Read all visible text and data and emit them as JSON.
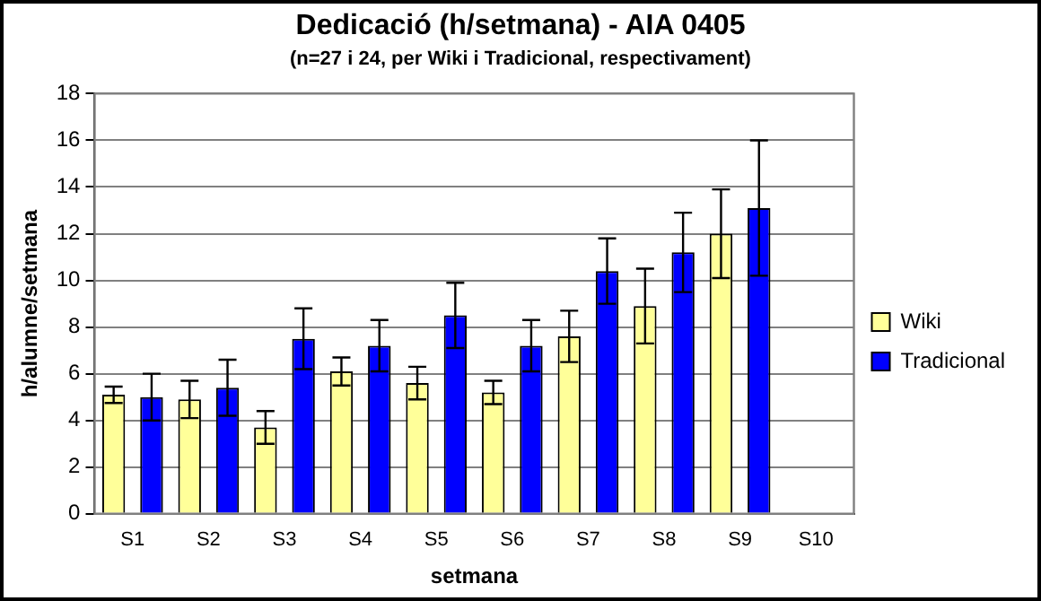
{
  "chart_data": {
    "type": "bar",
    "title": "Dedicació (h/setmana)  - AIA 0405",
    "subtitle": "(n=27 i 24, per Wiki i Tradicional, respectivament)",
    "xlabel": "setmana",
    "ylabel": "h/alumne/setmana",
    "categories": [
      "S1",
      "S2",
      "S3",
      "S4",
      "S5",
      "S6",
      "S7",
      "S8",
      "S9",
      "S10"
    ],
    "series": [
      {
        "name": "Wiki",
        "color": "#ffff99",
        "values": [
          5.1,
          4.9,
          3.7,
          6.1,
          5.6,
          5.2,
          7.6,
          8.9,
          12.0,
          null
        ],
        "errors": [
          0.35,
          0.8,
          0.7,
          0.6,
          0.7,
          0.5,
          1.1,
          1.6,
          1.9,
          null
        ]
      },
      {
        "name": "Tradicional",
        "color": "#0000ff",
        "values": [
          5.0,
          5.4,
          7.5,
          7.2,
          8.5,
          7.2,
          10.4,
          11.2,
          13.1,
          null
        ],
        "errors": [
          1.0,
          1.2,
          1.3,
          1.1,
          1.4,
          1.1,
          1.4,
          1.7,
          2.9,
          null
        ]
      }
    ],
    "ylim": [
      0,
      18
    ],
    "yticks": [
      0,
      2,
      4,
      6,
      8,
      10,
      12,
      14,
      16,
      18
    ],
    "grid": "y",
    "legend": "right"
  }
}
